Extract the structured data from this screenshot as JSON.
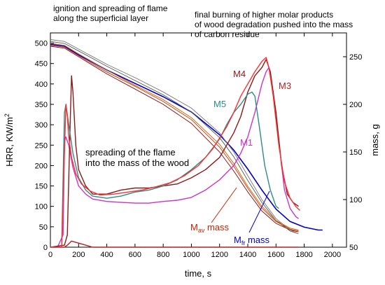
{
  "chart_data": {
    "type": "line",
    "xlabel": "time, s",
    "ylabel_left": "HRR, KW/m",
    "ylabel_left_sup": "2",
    "ylabel_right": "mass, g",
    "xlim": [
      0,
      2100
    ],
    "ylim_left": [
      0,
      525
    ],
    "ylim_right": [
      50,
      275
    ],
    "xticks": [
      0,
      200,
      400,
      600,
      800,
      1000,
      1200,
      1400,
      1600,
      1800,
      2000
    ],
    "yticks_left": [
      0,
      50,
      100,
      150,
      200,
      250,
      300,
      350,
      400,
      450,
      500
    ],
    "yticks_right": [
      50,
      100,
      150,
      200,
      250
    ],
    "annotations": {
      "top_left": "ignition and spreading of flame\nalong the superficial layer",
      "top_right": "final burning of higher molar products\nof wood degradation pushed into the mass\nof carbon residue",
      "middle": "spreading of the flame\ninto the mass of the wood"
    },
    "series_labels": {
      "m4": "M4",
      "m3": "M3",
      "m5": "M5",
      "m1": "M1",
      "mav_main": "M",
      "mav_sub": "av",
      "mav_suffix": " mass",
      "mfr_main": "M",
      "mfr_sub": "fr",
      "mfr_suffix": " mass"
    },
    "hrr_series": [
      {
        "name": "M1",
        "color": "#cc33cc",
        "x": [
          0,
          50,
          90,
          100,
          110,
          130,
          160,
          200,
          250,
          300,
          400,
          500,
          600,
          700,
          800,
          900,
          1000,
          1100,
          1200,
          1300,
          1350,
          1400,
          1450,
          1500,
          1530,
          1550,
          1580,
          1620,
          1660,
          1700,
          1740,
          1760
        ],
        "y": [
          0,
          0,
          30,
          260,
          270,
          250,
          195,
          150,
          130,
          118,
          112,
          110,
          108,
          108,
          112,
          115,
          122,
          140,
          165,
          200,
          230,
          270,
          330,
          400,
          430,
          440,
          380,
          260,
          140,
          95,
          75,
          70
        ]
      },
      {
        "name": "M3",
        "color": "#b22222",
        "x": [
          0,
          50,
          100,
          120,
          150,
          200,
          250,
          300,
          400,
          500,
          600,
          700,
          800,
          900,
          1000,
          1100,
          1200,
          1300,
          1400,
          1450,
          1500,
          1530,
          1560,
          1600,
          1640,
          1680,
          1720,
          1760
        ],
        "y": [
          0,
          0,
          0,
          5,
          15,
          10,
          5,
          0,
          0,
          0,
          0,
          0,
          0,
          0,
          0,
          0,
          0,
          0,
          0,
          0,
          0,
          0,
          0,
          0,
          0,
          0,
          0,
          0
        ]
      },
      {
        "name": "M4",
        "color": "#8b1a1a",
        "x": [
          0,
          100,
          120,
          140,
          150,
          160,
          180,
          200,
          250,
          300,
          400,
          500,
          600,
          700,
          800,
          900,
          1000,
          1100,
          1200,
          1300,
          1350,
          1400,
          1450,
          1500,
          1530,
          1560,
          1600,
          1640,
          1680,
          1720,
          1760
        ],
        "y": [
          0,
          5,
          30,
          300,
          420,
          380,
          250,
          190,
          150,
          130,
          130,
          140,
          145,
          145,
          150,
          155,
          170,
          190,
          220,
          280,
          320,
          380,
          420,
          440,
          460,
          430,
          330,
          200,
          130,
          110,
          100
        ]
      },
      {
        "name": "M5",
        "color": "#2e8b8b",
        "x": [
          0,
          80,
          100,
          110,
          130,
          160,
          200,
          250,
          300,
          400,
          500,
          600,
          700,
          800,
          900,
          1000,
          1100,
          1200,
          1250,
          1300,
          1350,
          1400,
          1430,
          1450,
          1480,
          1520,
          1560,
          1600,
          1620
        ],
        "y": [
          0,
          0,
          330,
          350,
          300,
          230,
          170,
          140,
          125,
          120,
          125,
          135,
          140,
          150,
          165,
          190,
          220,
          265,
          300,
          330,
          350,
          375,
          380,
          370,
          300,
          200,
          140,
          100,
          95
        ]
      },
      {
        "name": "M-red",
        "color": "#ff3030",
        "x": [
          0,
          80,
          100,
          110,
          120,
          130,
          150,
          180,
          220,
          280,
          350,
          450,
          550,
          650,
          750,
          850,
          950,
          1050,
          1150,
          1250,
          1300,
          1350,
          1400,
          1450,
          1500,
          1530,
          1550,
          1580,
          1620,
          1660,
          1700,
          1740,
          1770
        ],
        "y": [
          0,
          0,
          230,
          350,
          320,
          270,
          220,
          180,
          155,
          138,
          128,
          130,
          135,
          140,
          148,
          158,
          175,
          200,
          240,
          295,
          330,
          370,
          400,
          430,
          455,
          465,
          440,
          370,
          250,
          160,
          120,
          100,
          90
        ]
      }
    ],
    "mass_series": [
      {
        "name": "Mav mass",
        "color": "#8b0000",
        "x": [
          0,
          100,
          200,
          400,
          600,
          800,
          1000,
          1200,
          1300,
          1400,
          1500,
          1600,
          1700,
          1760
        ],
        "y": [
          261,
          259,
          250,
          232,
          216,
          200,
          180,
          150,
          130,
          108,
          88,
          75,
          68,
          66
        ]
      },
      {
        "name": "Mfr mass",
        "color": "#0000cc",
        "x": [
          0,
          100,
          200,
          400,
          600,
          800,
          1000,
          1200,
          1300,
          1400,
          1500,
          1600,
          1700,
          1800,
          1900,
          1930
        ],
        "y": [
          263,
          261,
          252,
          236,
          222,
          208,
          192,
          168,
          152,
          132,
          110,
          90,
          77,
          71,
          68,
          68
        ]
      },
      {
        "name": "mass-gray1",
        "color": "#555555",
        "x": [
          0,
          100,
          200,
          400,
          600,
          800,
          1000,
          1200,
          1300,
          1400,
          1500,
          1600,
          1700,
          1760
        ],
        "y": [
          266,
          264,
          256,
          240,
          225,
          210,
          192,
          165,
          145,
          120,
          97,
          78,
          67,
          64
        ]
      },
      {
        "name": "mass-gray2",
        "color": "#777777",
        "x": [
          0,
          100,
          200,
          400,
          600,
          800,
          1000,
          1200,
          1300,
          1400,
          1500,
          1600,
          1700,
          1760
        ],
        "y": [
          268,
          266,
          258,
          242,
          228,
          213,
          196,
          170,
          150,
          125,
          100,
          80,
          68,
          64
        ]
      },
      {
        "name": "mass-red",
        "color": "#cc3300",
        "x": [
          0,
          100,
          200,
          400,
          600,
          800,
          1000,
          1200,
          1300,
          1400,
          1500,
          1600,
          1700,
          1760
        ],
        "y": [
          262,
          260,
          251,
          234,
          219,
          203,
          184,
          155,
          135,
          112,
          91,
          77,
          69,
          67
        ]
      },
      {
        "name": "mass-orange",
        "color": "#cc6600",
        "x": [
          0,
          100,
          200,
          400,
          600,
          800,
          1000,
          1200,
          1300,
          1400,
          1500,
          1600,
          1700,
          1760
        ],
        "y": [
          264,
          262,
          253,
          236,
          220,
          205,
          186,
          158,
          138,
          114,
          93,
          78,
          70,
          68
        ]
      }
    ]
  }
}
